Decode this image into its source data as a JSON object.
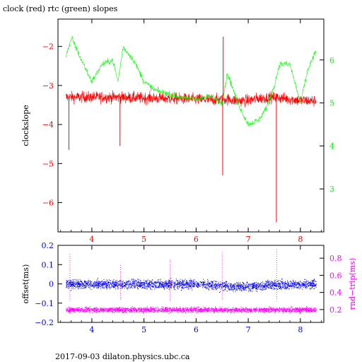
{
  "header": {
    "title": "clock (red) rtc (green) slopes"
  },
  "footer": {
    "text": "2017-09-03  dilaton.physics.ubc.ca"
  },
  "colors": {
    "red": "#ff0000",
    "green": "#00ff00",
    "blue": "#0000ff",
    "magenta": "#ff00ff",
    "axis": "#000000"
  },
  "chart_data": [
    {
      "type": "line",
      "title": "clock (red) rtc (green) slopes",
      "xlabel": "",
      "ylabel": "clockslope",
      "y2label": "",
      "xlim": [
        3.35,
        8.45
      ],
      "ylim": [
        -6.75,
        -1.3
      ],
      "y2lim": [
        2.0,
        6.95
      ],
      "x_ticks": [
        4,
        5,
        6,
        7,
        8
      ],
      "y_ticks": [
        -2,
        -3,
        -4,
        -5,
        -6
      ],
      "y2_ticks": [
        3,
        4,
        5,
        6
      ],
      "series": [
        {
          "axis": "left",
          "color": "#ff0000",
          "style": "noisy-line",
          "x": [
            3.5,
            4.0,
            4.5,
            5.0,
            5.5,
            6.0,
            6.3,
            6.6,
            6.8,
            7.0,
            7.2,
            7.5,
            7.8,
            8.0,
            8.3
          ],
          "y": [
            -3.3,
            -3.3,
            -3.3,
            -3.32,
            -3.33,
            -3.35,
            -3.37,
            -3.35,
            -3.4,
            -3.38,
            -3.33,
            -3.3,
            -3.35,
            -3.38,
            -3.4
          ],
          "noise": 0.25,
          "spikes": [
            {
              "x": 3.56,
              "y": -4.65
            },
            {
              "x": 4.54,
              "y": -4.55
            },
            {
              "x": 6.51,
              "y": -5.3
            },
            {
              "x": 6.52,
              "y": -1.75
            },
            {
              "x": 7.54,
              "y": -6.5
            }
          ]
        },
        {
          "axis": "right",
          "color": "#00ff00",
          "style": "noisy-line",
          "x": [
            3.5,
            3.62,
            3.8,
            4.0,
            4.2,
            4.4,
            4.5,
            4.6,
            4.8,
            5.0,
            5.2,
            5.5,
            5.8,
            6.0,
            6.3,
            6.5,
            6.6,
            6.8,
            7.0,
            7.2,
            7.35,
            7.5,
            7.6,
            7.8,
            8.0,
            8.15,
            8.3
          ],
          "y": [
            6.1,
            6.5,
            6.0,
            5.5,
            5.9,
            6.0,
            5.5,
            6.3,
            6.0,
            5.5,
            5.3,
            5.2,
            5.1,
            5.1,
            5.15,
            5.0,
            5.7,
            5.0,
            4.5,
            4.6,
            4.9,
            5.4,
            5.9,
            5.9,
            5.0,
            5.8,
            6.2
          ],
          "noise": 0.12
        }
      ]
    },
    {
      "type": "scatter",
      "xlabel": "",
      "ylabel": "offset(ms)",
      "y2label": "rnd−trip(ms)",
      "xlim": [
        3.35,
        8.45
      ],
      "ylim": [
        -0.2,
        0.2
      ],
      "y2lim": [
        0.05,
        0.95
      ],
      "x_ticks": [
        4,
        5,
        6,
        7,
        8
      ],
      "y_ticks": [
        0.2,
        0.1,
        0,
        -0.1,
        -0.2
      ],
      "y_tick_labels": [
        "0.2",
        "0.1",
        "0",
        "−0.1",
        "−0.2"
      ],
      "y2_ticks": [
        0.2,
        0.4,
        0.6,
        0.8
      ],
      "series": [
        {
          "axis": "left",
          "color": "#0000ff",
          "x": [
            3.5,
            5.0,
            6.0,
            6.9,
            7.4,
            8.3
          ],
          "y": [
            0.0,
            0.0,
            0.0,
            -0.015,
            -0.005,
            0.0
          ],
          "spread": 0.025
        },
        {
          "axis": "right",
          "color": "#ff00ff",
          "x": [
            3.5,
            5.0,
            6.0,
            7.0,
            8.3
          ],
          "y": [
            0.2,
            0.2,
            0.2,
            0.2,
            0.2
          ],
          "spread": 0.03
        }
      ],
      "outliers": [
        {
          "x": 3.58,
          "y2": 0.85
        },
        {
          "x": 4.55,
          "y2": 0.72
        },
        {
          "x": 5.5,
          "y2": 0.78
        },
        {
          "x": 6.5,
          "y2": 0.87
        },
        {
          "x": 7.55,
          "y2": 0.9
        }
      ]
    }
  ]
}
